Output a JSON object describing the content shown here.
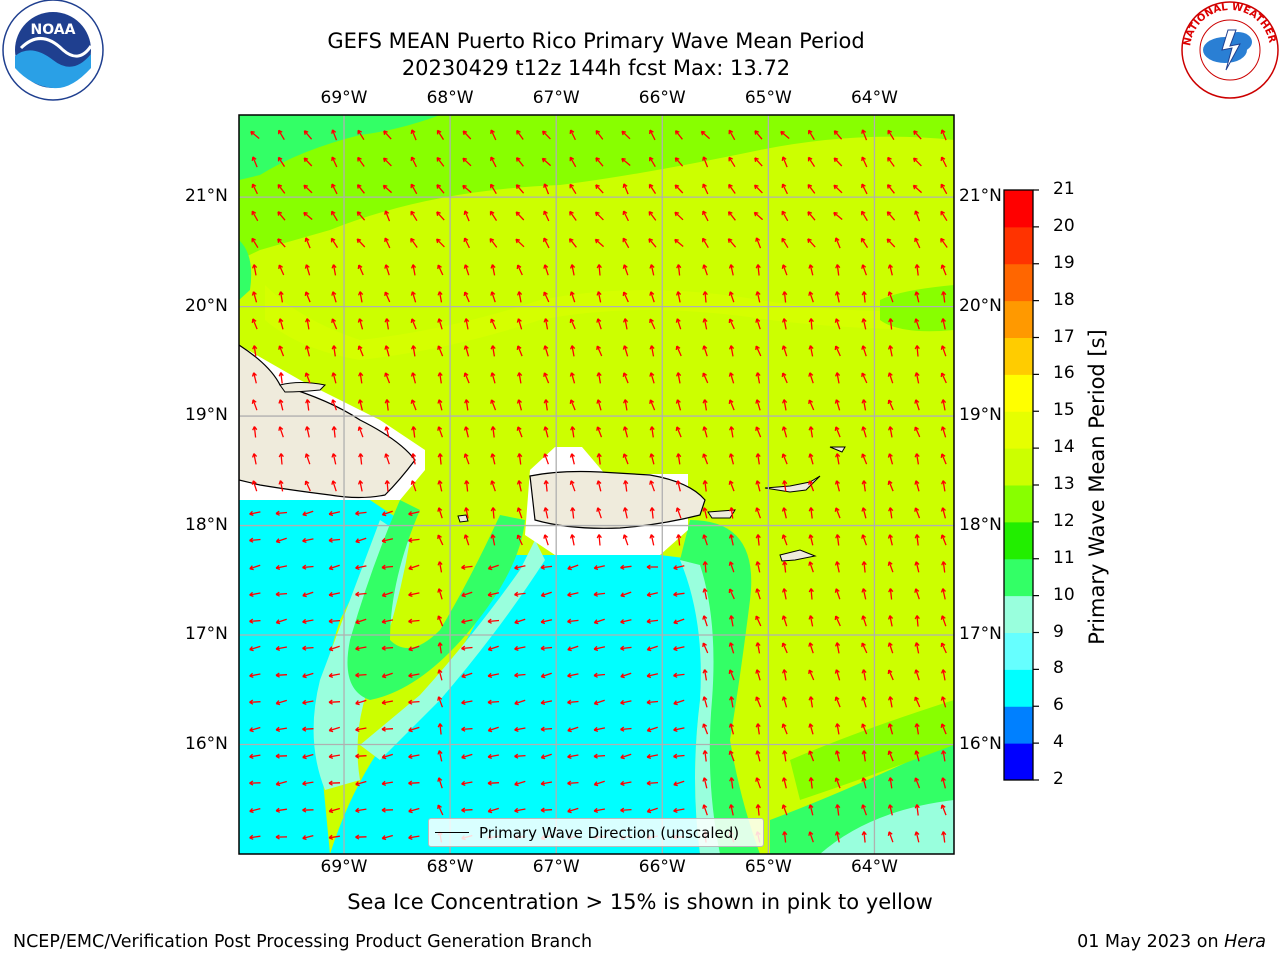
{
  "title": {
    "line1": "GEFS MEAN Puerto Rico Primary Wave Mean Period",
    "line2": "20230429 t12z 144h fcst   Max: 13.72"
  },
  "map": {
    "lon_ticks": [
      "69°W",
      "68°W",
      "67°W",
      "66°W",
      "65°W",
      "64°W"
    ],
    "lat_ticks": [
      "21°N",
      "20°N",
      "19°N",
      "18°N",
      "17°N",
      "16°N"
    ],
    "lon_range": [
      -69.99,
      -63.25
    ],
    "lat_range": [
      15.0,
      21.75
    ],
    "land_color": "#efebdc",
    "arrow_color": "#ff0000",
    "grid_color": "#b0b0b0"
  },
  "colorbar": {
    "label": "Primary Wave Mean Period [s]",
    "ticks": [
      "21",
      "20",
      "19",
      "18",
      "17",
      "16",
      "15",
      "14",
      "13",
      "12",
      "11",
      "10",
      "9",
      "8",
      "6",
      "4",
      "2"
    ],
    "colors": [
      "#0000ff",
      "#0080ff",
      "#00ffff",
      "#66ffff",
      "#99ffdd",
      "#33ff66",
      "#22ee00",
      "#88ff00",
      "#ccff00",
      "#e6ff00",
      "#ffff00",
      "#ffcc00",
      "#ff9900",
      "#ff6600",
      "#ff3300",
      "#ff0000"
    ]
  },
  "legend": {
    "label": "Primary Wave Direction (unscaled)"
  },
  "caption": "Sea Ice Concentration > 15% is shown in pink to yellow",
  "footer": {
    "left": "NCEP/EMC/Verification Post Processing Product Generation Branch",
    "right_date": "01 May 2023 on",
    "right_host": "Hera"
  },
  "logos": {
    "left": "NOAA",
    "right": "NATIONAL WEATHER SERVICE"
  }
}
